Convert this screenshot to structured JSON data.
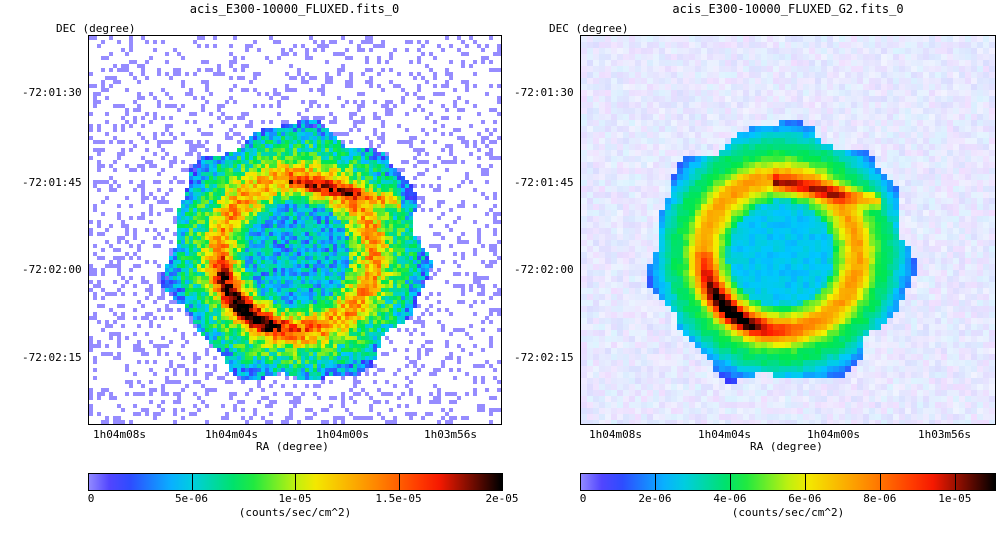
{
  "panels": [
    {
      "title": "acis_E300-10000_FLUXED.fits_0",
      "y_axis_label": "DEC (degree)",
      "x_axis_label": "RA (degree)",
      "dec_ticks": [
        "-72:01:30",
        "-72:01:45",
        "-72:02:00",
        "-72:02:15"
      ],
      "ra_ticks": [
        "1h04m08s",
        "1h04m04s",
        "1h04m00s",
        "1h03m56s"
      ],
      "colorbar": {
        "colormap": "rainbow-black",
        "tick_labels": [
          "0",
          "5e-06",
          "1e-05",
          "1.5e-05",
          "2e-05"
        ],
        "unit": "(counts/sec/cm^2)"
      }
    },
    {
      "title": "acis_E300-10000_FLUXED_G2.fits_0",
      "y_axis_label": "DEC (degree)",
      "x_axis_label": "RA (degree)",
      "dec_ticks": [
        "-72:01:30",
        "-72:01:45",
        "-72:02:00",
        "-72:02:15"
      ],
      "ra_ticks": [
        "1h04m08s",
        "1h04m04s",
        "1h04m00s",
        "1h03m56s"
      ],
      "colorbar": {
        "colormap": "rainbow-black",
        "tick_labels": [
          "0",
          "2e-06",
          "4e-06",
          "6e-06",
          "8e-06",
          "1e-05"
        ],
        "unit": "(counts/sec/cm^2)"
      }
    }
  ],
  "colors": {
    "stop0": "#ffffff",
    "stop1": "#3a2cff",
    "stop2": "#00c8ff",
    "stop3": "#00e84a",
    "stop4": "#f2f200",
    "stop5": "#ff8c00",
    "stop6": "#ff1a00",
    "stop7": "#000000"
  }
}
